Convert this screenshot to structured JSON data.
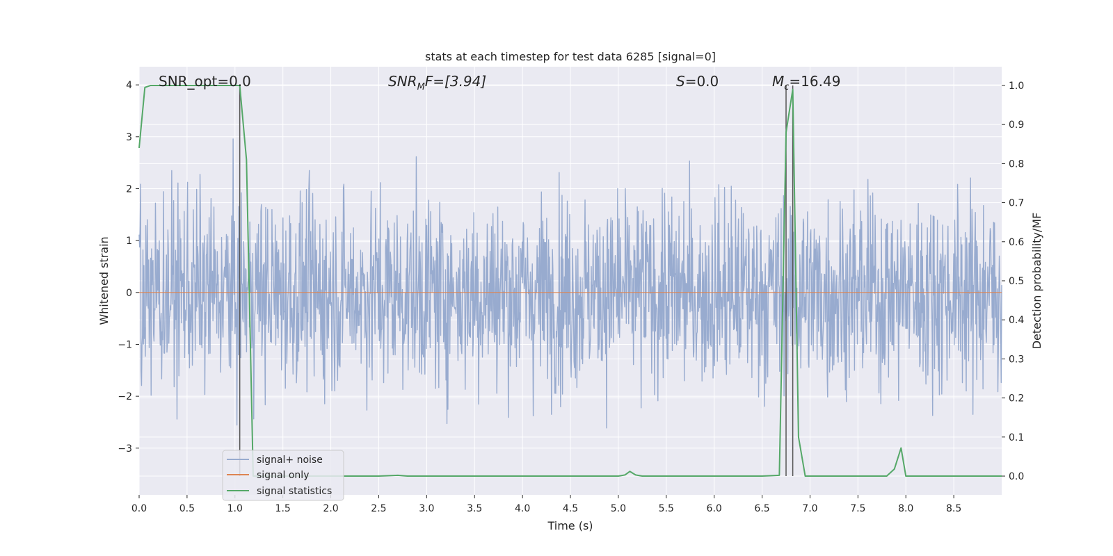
{
  "chart_data": {
    "type": "line",
    "title": "stats at each timestep for test data 6285 [signal=0]",
    "xlabel": "Time (s)",
    "ylabel": "Whitened strain",
    "y2label": "Detection probability/MF",
    "xlim": [
      0.0,
      9.0
    ],
    "ylim": [
      -3.9,
      4.35
    ],
    "y2lim": [
      -0.048,
      1.048
    ],
    "xticks": [
      "0.0",
      "0.5",
      "1.0",
      "1.5",
      "2.0",
      "2.5",
      "3.0",
      "3.5",
      "4.0",
      "4.5",
      "5.0",
      "5.5",
      "6.0",
      "6.5",
      "7.0",
      "7.5",
      "8.0",
      "8.5"
    ],
    "yticks": [
      "4",
      "3",
      "2",
      "1",
      "0",
      "−1",
      "−2",
      "−3"
    ],
    "y2ticks": [
      "1.0",
      "0.9",
      "0.8",
      "0.7",
      "0.6",
      "0.5",
      "0.4",
      "0.3",
      "0.2",
      "0.1",
      "0.0"
    ],
    "grid": true,
    "legend_position": "lower-left",
    "annotations": {
      "snr_opt": "SNR_opt=0.0",
      "snr_mf_sym": "SNR",
      "snr_mf_sub": "M",
      "snr_mf_val": "F=[3.94]",
      "s_sym": "S",
      "s_val": "=0.0",
      "mc_sym": "M",
      "mc_sub": "c",
      "mc_val": "=16.49"
    },
    "colors": {
      "background": "#eaeaf2",
      "noise": "#98abcf",
      "signal": "#dd8452",
      "stats": "#55a868",
      "vline": "#555555"
    },
    "series": [
      {
        "name": "signal+ noise",
        "description_kind": "noise",
        "amplitude_envelope": {
          "typical_max": 2.4,
          "typical_min": -2.1,
          "peak_max": 4.0,
          "peak_min": -3.6
        }
      },
      {
        "name": "signal only",
        "x": [
          0.0,
          9.0
        ],
        "y": [
          0.0,
          0.0
        ]
      },
      {
        "name": "signal statistics",
        "axis": "right",
        "x": [
          0.0,
          0.06,
          0.12,
          0.25,
          0.5,
          0.75,
          0.9,
          1.05,
          1.12,
          1.19,
          1.26,
          1.5,
          2.0,
          2.5,
          2.7,
          2.8,
          3.0,
          3.5,
          4.0,
          4.5,
          5.0,
          5.07,
          5.12,
          5.18,
          5.25,
          5.5,
          6.0,
          6.5,
          6.68,
          6.75,
          6.82,
          6.88,
          6.95,
          7.0,
          7.5,
          7.8,
          7.88,
          7.95,
          8.0,
          8.5,
          9.0
        ],
        "y": [
          0.84,
          0.995,
          1.0,
          1.0,
          1.0,
          1.0,
          1.0,
          1.0,
          0.81,
          0.0,
          0.0,
          0.0,
          0.0,
          0.0,
          0.002,
          0.0,
          0.0,
          0.0,
          0.0,
          0.0,
          0.0,
          0.003,
          0.012,
          0.003,
          0.0,
          0.0,
          0.0,
          0.0,
          0.002,
          0.88,
          0.99,
          0.1,
          0.0,
          0.0,
          0.0,
          0.0,
          0.018,
          0.072,
          0.0,
          0.0,
          0.0
        ]
      }
    ],
    "vlines": [
      1.05,
      6.75,
      6.82
    ]
  }
}
